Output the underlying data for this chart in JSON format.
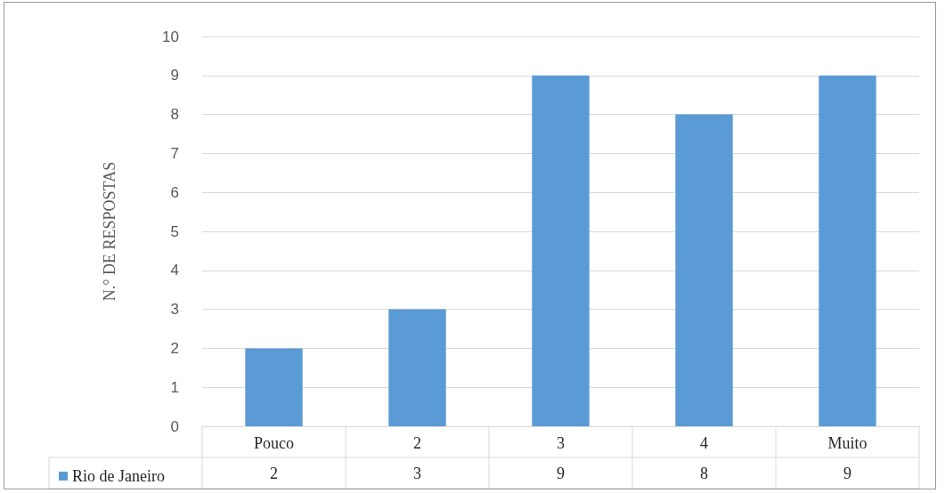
{
  "chart_data": {
    "type": "bar",
    "ylabel": "N.° DE RESPOSTAS",
    "categories": [
      "Pouco",
      "2",
      "3",
      "4",
      "Muito"
    ],
    "series": [
      {
        "name": "Rio de Janeiro",
        "color": "#5b9bd5",
        "values": [
          2,
          3,
          9,
          8,
          9
        ]
      }
    ],
    "ylim": [
      0,
      10
    ],
    "yticks": [
      0,
      1,
      2,
      3,
      4,
      5,
      6,
      7,
      8,
      9,
      10
    ],
    "grid": "y",
    "legend": "bottom left",
    "data_labels": true
  }
}
